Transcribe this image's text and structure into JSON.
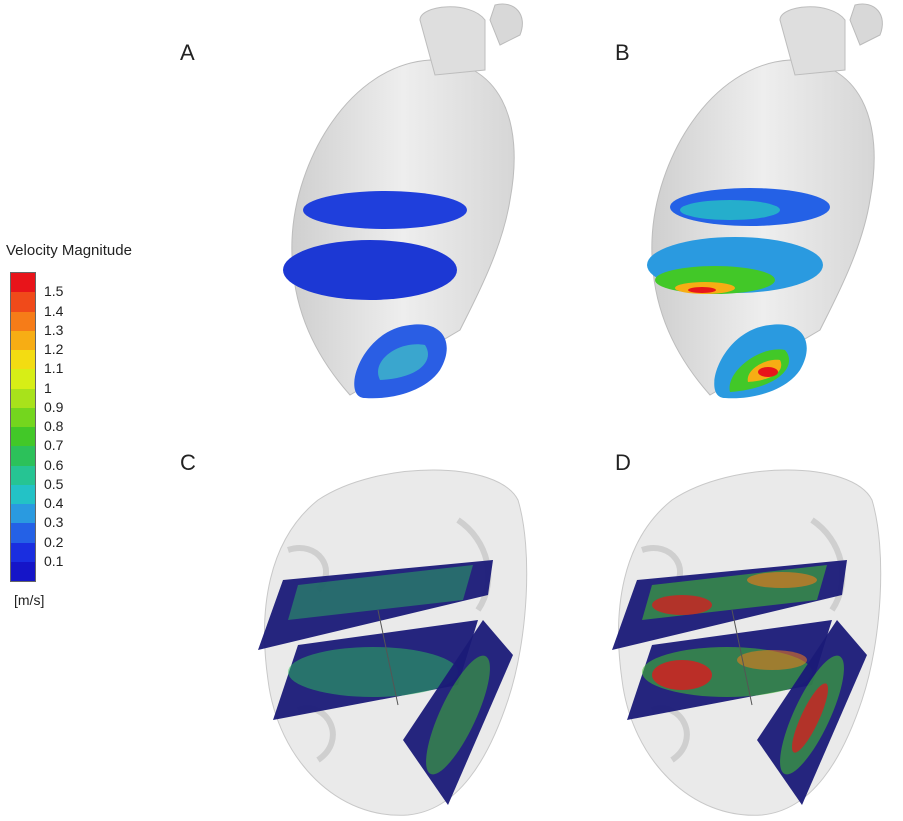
{
  "panels": [
    {
      "label": "A"
    },
    {
      "label": "B"
    },
    {
      "label": "C"
    },
    {
      "label": "D"
    }
  ],
  "legend": {
    "title": "Velocity Magnitude",
    "unit": "[m/s]",
    "ticks": [
      "1.5",
      "1.4",
      "1.3",
      "1.2",
      "1.1",
      "1",
      "0.9",
      "0.8",
      "0.7",
      "0.6",
      "0.5",
      "0.4",
      "0.3",
      "0.2",
      "0.1"
    ],
    "colors": [
      "#e8141a",
      "#f04a1a",
      "#f67c18",
      "#f7ad14",
      "#f3dc12",
      "#d7ee16",
      "#a8e21b",
      "#74d61e",
      "#42c828",
      "#2cc15a",
      "#26c493",
      "#23c2c6",
      "#2a9ae0",
      "#2461e6",
      "#1a2ee0",
      "#1515c8"
    ]
  },
  "colors": {
    "vessel": "#e3e3e3",
    "slice_low": "#1a3cdc",
    "plane": "#1a1a78"
  }
}
